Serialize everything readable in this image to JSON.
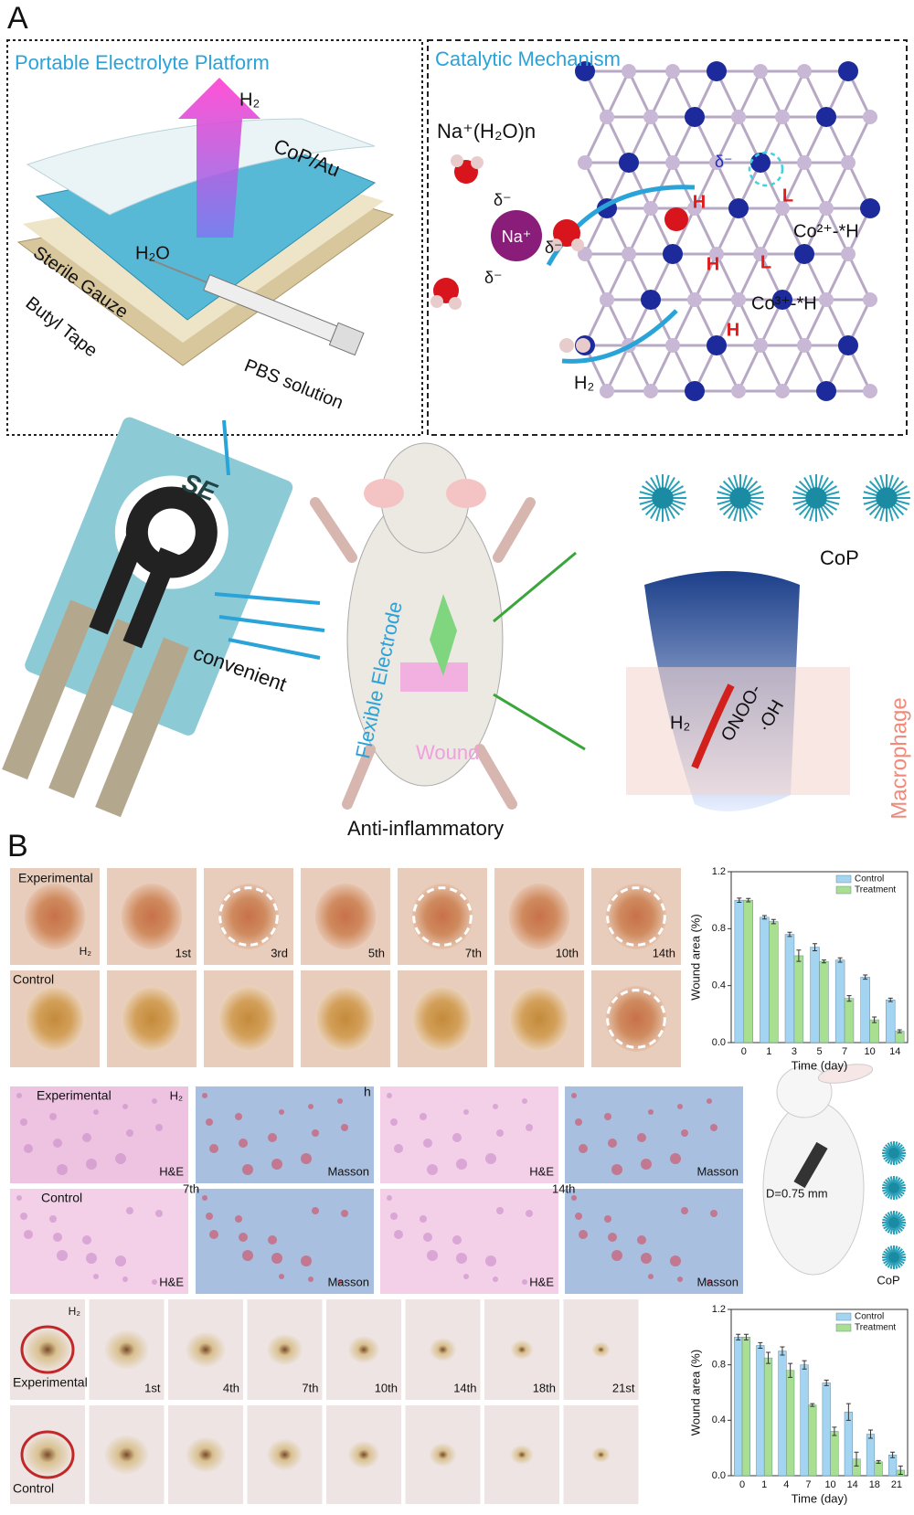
{
  "panel_a": {
    "label": "A",
    "platform": {
      "title": "Portable Electrolyte Platform",
      "h2": "H₂",
      "cop_au": "CoP/Au",
      "h2o": "H₂O",
      "gauze": "Sterile Gauze",
      "tape": "Butyl Tape",
      "pbs": "PBS solution"
    },
    "mechanism": {
      "title": "Catalytic Mechanism",
      "cluster": "Na⁺(H₂O)n",
      "delta": "δ⁻",
      "na": "Na⁺",
      "site_h": "H",
      "site_l": "L",
      "co2": "Co²⁺-*H",
      "co3": "Co³⁺-*H",
      "h2": "H₂"
    },
    "device": {
      "electrode": "SE",
      "convenient": "convenient",
      "flexible": "Flexible Electrode",
      "wound": "Wound",
      "caption": "Anti-inflammatory",
      "cop": "CoP",
      "onoo": "ONOO-",
      "oh": "·OH",
      "h2": "H₂",
      "macrophage": "Macrophage"
    }
  },
  "panel_b": {
    "label": "B",
    "rat_photos": {
      "experimental": "Experimental",
      "h2": "H₂",
      "days": [
        "1st",
        "3rd",
        "5th",
        "7th",
        "10th",
        "14th"
      ],
      "control": "Control"
    },
    "histology": {
      "experimental": "Experimental",
      "h2": "H₂",
      "h": "h",
      "stains": [
        "H&E",
        "Masson",
        "H&E",
        "Masson"
      ],
      "days": [
        "7th",
        "14th"
      ],
      "control": "Control",
      "diameter": "D=0.75 mm",
      "cop": "CoP"
    },
    "rabbit_photos": {
      "experimental": "Experimental",
      "h2": "H₂",
      "days": [
        "1st",
        "4th",
        "7th",
        "10th",
        "14th",
        "18th",
        "21st"
      ],
      "control": "Control"
    }
  },
  "chart_data": [
    {
      "type": "bar",
      "categories": [
        "0",
        "1",
        "3",
        "5",
        "7",
        "10",
        "14"
      ],
      "series": [
        {
          "name": "Control",
          "color": "#a3d5f3",
          "values": [
            1.0,
            0.88,
            0.76,
            0.67,
            0.58,
            0.46,
            0.3
          ],
          "errors": [
            0.015,
            0.012,
            0.015,
            0.025,
            0.015,
            0.015,
            0.012
          ]
        },
        {
          "name": "Treatment",
          "color": "#a9df91",
          "values": [
            1.0,
            0.85,
            0.61,
            0.57,
            0.31,
            0.16,
            0.08
          ],
          "errors": [
            0.012,
            0.015,
            0.04,
            0.01,
            0.02,
            0.02,
            0.01
          ]
        }
      ],
      "ylim": [
        0,
        1.2
      ],
      "yticks": [
        {
          "value": 0,
          "label": "0.0"
        },
        0.4,
        0.8,
        1.2
      ],
      "ylabel": "Wound area (%)",
      "xlabel": "Time (day)",
      "legend": "upper right"
    },
    {
      "type": "bar",
      "categories": [
        "0",
        "1",
        "4",
        "7",
        "10",
        "14",
        "18",
        "21"
      ],
      "series": [
        {
          "name": "Control",
          "color": "#a3d5f3",
          "values": [
            1.0,
            0.94,
            0.9,
            0.8,
            0.67,
            0.46,
            0.3,
            0.15
          ],
          "errors": [
            0.02,
            0.02,
            0.03,
            0.03,
            0.02,
            0.06,
            0.03,
            0.02
          ]
        },
        {
          "name": "Treatment",
          "color": "#a9df91",
          "values": [
            1.0,
            0.85,
            0.76,
            0.51,
            0.32,
            0.12,
            0.1,
            0.04
          ],
          "errors": [
            0.02,
            0.04,
            0.05,
            0.01,
            0.03,
            0.05,
            0.01,
            0.03
          ]
        }
      ],
      "ylim": [
        0,
        1.2
      ],
      "yticks": [
        {
          "value": 0,
          "label": "0.0"
        },
        0.4,
        0.8,
        1.2
      ],
      "ylabel": "Wound area (%)",
      "xlabel": "Time (day)",
      "legend": "upper right"
    }
  ]
}
